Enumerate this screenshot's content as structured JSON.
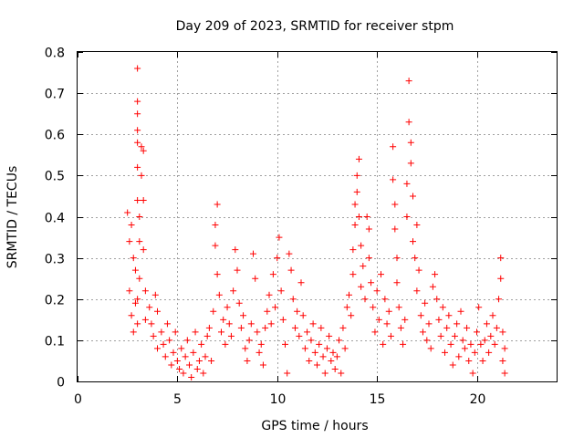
{
  "chart_data": {
    "type": "scatter",
    "title": "Day 209 of 2023, SRMTID for receiver stpm",
    "xlabel": "GPS time / hours",
    "ylabel": "SRMTID / TECUs",
    "xlim": [
      0,
      24
    ],
    "ylim": [
      0,
      0.8
    ],
    "x_ticks": [
      0,
      5,
      10,
      15,
      20
    ],
    "x_tick_labels": [
      "0",
      "5",
      "10",
      "15",
      "20"
    ],
    "y_ticks": [
      0,
      0.1,
      0.2,
      0.3,
      0.4,
      0.5,
      0.6,
      0.7,
      0.8
    ],
    "y_tick_labels": [
      "0",
      "0.1",
      "0.2",
      "0.3",
      "0.4",
      "0.5",
      "0.6",
      "0.7",
      "0.8"
    ],
    "grid": true,
    "marker": "+",
    "color": "#ff0000",
    "series": [
      {
        "name": "SRMTID",
        "points": [
          [
            2.5,
            0.41
          ],
          [
            2.6,
            0.34
          ],
          [
            2.6,
            0.22
          ],
          [
            2.7,
            0.38
          ],
          [
            2.7,
            0.16
          ],
          [
            2.8,
            0.3
          ],
          [
            2.8,
            0.12
          ],
          [
            2.9,
            0.27
          ],
          [
            2.9,
            0.19
          ],
          [
            3.0,
            0.76
          ],
          [
            3.0,
            0.68
          ],
          [
            3.0,
            0.65
          ],
          [
            3.0,
            0.61
          ],
          [
            3.0,
            0.58
          ],
          [
            3.0,
            0.52
          ],
          [
            3.0,
            0.44
          ],
          [
            3.0,
            0.2
          ],
          [
            3.0,
            0.14
          ],
          [
            3.1,
            0.4
          ],
          [
            3.1,
            0.34
          ],
          [
            3.1,
            0.25
          ],
          [
            3.2,
            0.57
          ],
          [
            3.2,
            0.5
          ],
          [
            3.3,
            0.56
          ],
          [
            3.3,
            0.44
          ],
          [
            3.3,
            0.32
          ],
          [
            3.4,
            0.22
          ],
          [
            3.4,
            0.15
          ],
          [
            3.6,
            0.18
          ],
          [
            3.7,
            0.14
          ],
          [
            3.8,
            0.11
          ],
          [
            3.9,
            0.21
          ],
          [
            4.0,
            0.17
          ],
          [
            4.0,
            0.08
          ],
          [
            4.2,
            0.12
          ],
          [
            4.3,
            0.09
          ],
          [
            4.4,
            0.06
          ],
          [
            4.5,
            0.14
          ],
          [
            4.6,
            0.1
          ],
          [
            4.7,
            0.04
          ],
          [
            4.8,
            0.07
          ],
          [
            4.9,
            0.12
          ],
          [
            5.0,
            0.05
          ],
          [
            5.1,
            0.03
          ],
          [
            5.2,
            0.08
          ],
          [
            5.3,
            0.02
          ],
          [
            5.4,
            0.06
          ],
          [
            5.5,
            0.1
          ],
          [
            5.6,
            0.04
          ],
          [
            5.7,
            0.01
          ],
          [
            5.8,
            0.07
          ],
          [
            5.9,
            0.12
          ],
          [
            6.0,
            0.03
          ],
          [
            6.1,
            0.05
          ],
          [
            6.2,
            0.09
          ],
          [
            6.3,
            0.02
          ],
          [
            6.4,
            0.06
          ],
          [
            6.5,
            0.11
          ],
          [
            6.6,
            0.13
          ],
          [
            6.7,
            0.05
          ],
          [
            6.8,
            0.17
          ],
          [
            6.9,
            0.38
          ],
          [
            6.9,
            0.33
          ],
          [
            7.0,
            0.43
          ],
          [
            7.0,
            0.26
          ],
          [
            7.1,
            0.21
          ],
          [
            7.2,
            0.12
          ],
          [
            7.3,
            0.15
          ],
          [
            7.4,
            0.09
          ],
          [
            7.5,
            0.18
          ],
          [
            7.6,
            0.14
          ],
          [
            7.7,
            0.11
          ],
          [
            7.8,
            0.22
          ],
          [
            7.9,
            0.32
          ],
          [
            8.0,
            0.27
          ],
          [
            8.1,
            0.19
          ],
          [
            8.2,
            0.13
          ],
          [
            8.3,
            0.16
          ],
          [
            8.4,
            0.08
          ],
          [
            8.5,
            0.05
          ],
          [
            8.6,
            0.1
          ],
          [
            8.7,
            0.14
          ],
          [
            8.8,
            0.31
          ],
          [
            8.9,
            0.25
          ],
          [
            9.0,
            0.12
          ],
          [
            9.1,
            0.07
          ],
          [
            9.2,
            0.09
          ],
          [
            9.3,
            0.04
          ],
          [
            9.4,
            0.13
          ],
          [
            9.5,
            0.17
          ],
          [
            9.6,
            0.21
          ],
          [
            9.7,
            0.14
          ],
          [
            9.8,
            0.26
          ],
          [
            9.9,
            0.18
          ],
          [
            10.0,
            0.3
          ],
          [
            10.1,
            0.35
          ],
          [
            10.2,
            0.22
          ],
          [
            10.3,
            0.15
          ],
          [
            10.4,
            0.09
          ],
          [
            10.5,
            0.02
          ],
          [
            10.6,
            0.31
          ],
          [
            10.7,
            0.27
          ],
          [
            10.8,
            0.2
          ],
          [
            10.9,
            0.13
          ],
          [
            11.0,
            0.17
          ],
          [
            11.1,
            0.11
          ],
          [
            11.2,
            0.24
          ],
          [
            11.3,
            0.16
          ],
          [
            11.4,
            0.08
          ],
          [
            11.5,
            0.12
          ],
          [
            11.6,
            0.05
          ],
          [
            11.7,
            0.1
          ],
          [
            11.8,
            0.14
          ],
          [
            11.9,
            0.07
          ],
          [
            12.0,
            0.04
          ],
          [
            12.1,
            0.09
          ],
          [
            12.2,
            0.13
          ],
          [
            12.3,
            0.06
          ],
          [
            12.4,
            0.02
          ],
          [
            12.5,
            0.08
          ],
          [
            12.6,
            0.11
          ],
          [
            12.7,
            0.05
          ],
          [
            12.8,
            0.07
          ],
          [
            12.9,
            0.03
          ],
          [
            13.0,
            0.06
          ],
          [
            13.1,
            0.1
          ],
          [
            13.2,
            0.02
          ],
          [
            13.3,
            0.13
          ],
          [
            13.4,
            0.08
          ],
          [
            13.5,
            0.18
          ],
          [
            13.6,
            0.21
          ],
          [
            13.7,
            0.16
          ],
          [
            13.8,
            0.26
          ],
          [
            13.8,
            0.32
          ],
          [
            13.9,
            0.38
          ],
          [
            13.9,
            0.43
          ],
          [
            14.0,
            0.46
          ],
          [
            14.0,
            0.5
          ],
          [
            14.1,
            0.54
          ],
          [
            14.1,
            0.4
          ],
          [
            14.2,
            0.33
          ],
          [
            14.2,
            0.23
          ],
          [
            14.3,
            0.28
          ],
          [
            14.4,
            0.2
          ],
          [
            14.5,
            0.4
          ],
          [
            14.6,
            0.37
          ],
          [
            14.6,
            0.3
          ],
          [
            14.7,
            0.24
          ],
          [
            14.8,
            0.18
          ],
          [
            14.9,
            0.12
          ],
          [
            15.0,
            0.22
          ],
          [
            15.1,
            0.15
          ],
          [
            15.2,
            0.26
          ],
          [
            15.3,
            0.09
          ],
          [
            15.4,
            0.2
          ],
          [
            15.5,
            0.14
          ],
          [
            15.6,
            0.17
          ],
          [
            15.7,
            0.11
          ],
          [
            15.8,
            0.57
          ],
          [
            15.8,
            0.49
          ],
          [
            15.9,
            0.43
          ],
          [
            15.9,
            0.37
          ],
          [
            16.0,
            0.3
          ],
          [
            16.0,
            0.24
          ],
          [
            16.1,
            0.18
          ],
          [
            16.2,
            0.13
          ],
          [
            16.3,
            0.09
          ],
          [
            16.4,
            0.15
          ],
          [
            16.5,
            0.48
          ],
          [
            16.5,
            0.4
          ],
          [
            16.6,
            0.73
          ],
          [
            16.6,
            0.63
          ],
          [
            16.7,
            0.58
          ],
          [
            16.7,
            0.53
          ],
          [
            16.8,
            0.45
          ],
          [
            16.8,
            0.34
          ],
          [
            16.9,
            0.3
          ],
          [
            17.0,
            0.38
          ],
          [
            17.0,
            0.22
          ],
          [
            17.1,
            0.27
          ],
          [
            17.2,
            0.16
          ],
          [
            17.3,
            0.12
          ],
          [
            17.4,
            0.19
          ],
          [
            17.5,
            0.1
          ],
          [
            17.6,
            0.14
          ],
          [
            17.7,
            0.08
          ],
          [
            17.8,
            0.23
          ],
          [
            17.9,
            0.26
          ],
          [
            18.0,
            0.2
          ],
          [
            18.1,
            0.15
          ],
          [
            18.2,
            0.11
          ],
          [
            18.3,
            0.18
          ],
          [
            18.4,
            0.07
          ],
          [
            18.5,
            0.13
          ],
          [
            18.6,
            0.16
          ],
          [
            18.7,
            0.09
          ],
          [
            18.8,
            0.04
          ],
          [
            18.9,
            0.11
          ],
          [
            19.0,
            0.14
          ],
          [
            19.1,
            0.06
          ],
          [
            19.2,
            0.17
          ],
          [
            19.3,
            0.1
          ],
          [
            19.4,
            0.08
          ],
          [
            19.5,
            0.13
          ],
          [
            19.6,
            0.05
          ],
          [
            19.7,
            0.09
          ],
          [
            19.8,
            0.02
          ],
          [
            19.9,
            0.07
          ],
          [
            20.0,
            0.12
          ],
          [
            20.1,
            0.18
          ],
          [
            20.2,
            0.09
          ],
          [
            20.3,
            0.05
          ],
          [
            20.4,
            0.1
          ],
          [
            20.5,
            0.14
          ],
          [
            20.6,
            0.07
          ],
          [
            20.7,
            0.11
          ],
          [
            20.8,
            0.16
          ],
          [
            20.9,
            0.09
          ],
          [
            21.0,
            0.13
          ],
          [
            21.1,
            0.2
          ],
          [
            21.2,
            0.3
          ],
          [
            21.2,
            0.25
          ],
          [
            21.3,
            0.12
          ],
          [
            21.3,
            0.05
          ],
          [
            21.4,
            0.02
          ],
          [
            21.4,
            0.08
          ]
        ]
      }
    ]
  }
}
